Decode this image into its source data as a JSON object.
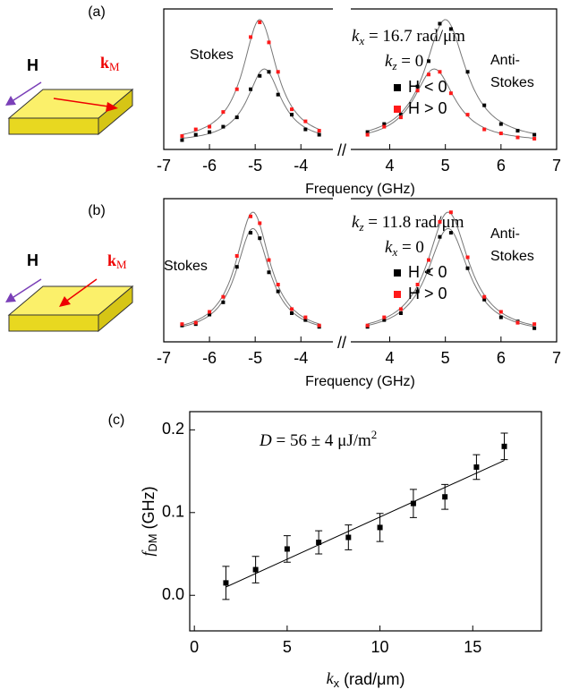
{
  "chart_data": [
    {
      "type": "scatter",
      "panel_label": "(a)",
      "xlabel": "Frequency (GHz)",
      "break_label": "//",
      "xlim": [
        -7,
        7
      ],
      "xbreak": [
        -3.3,
        3.3
      ],
      "ylim": [
        0,
        1.05
      ],
      "xticks": [
        -7,
        -6,
        -5,
        -4,
        4,
        5,
        6,
        7
      ],
      "left_label": "Stokes",
      "right_label": [
        "Anti-",
        "Stokes"
      ],
      "main_label": {
        "symbol": "k",
        "sub": "x",
        "rest": " = 16.7 rad/μm"
      },
      "second_label": {
        "symbol": "k",
        "sub": "z",
        "rest": " = 0"
      },
      "sample_labels": {
        "field": "H",
        "wave": "k",
        "wave_sub": "M"
      },
      "x": [
        -6.6,
        -6.3,
        -6.0,
        -5.7,
        -5.4,
        -5.1,
        -4.9,
        -4.7,
        -4.5,
        -4.2,
        -3.9,
        -3.6,
        3.6,
        3.9,
        4.2,
        4.5,
        4.7,
        4.9,
        5.1,
        5.4,
        5.7,
        6.0,
        6.3,
        6.6
      ],
      "series": [
        {
          "name": "H < 0",
          "color": "#000000",
          "values": [
            0.07,
            0.11,
            0.13,
            0.17,
            0.24,
            0.45,
            0.55,
            0.58,
            0.41,
            0.26,
            0.15,
            0.11,
            0.13,
            0.19,
            0.26,
            0.47,
            0.66,
            0.94,
            0.9,
            0.58,
            0.33,
            0.19,
            0.14,
            0.11
          ],
          "fit": {
            "color": "#777777",
            "baseline": 0.05,
            "peaks": [
              {
                "center": -4.8,
                "amplitude": 0.55,
                "width": 0.45
              },
              {
                "center": 5.0,
                "amplitude": 0.92,
                "width": 0.45
              }
            ]
          }
        },
        {
          "name": "H > 0",
          "color": "#ff1a1a",
          "values": [
            0.1,
            0.15,
            0.17,
            0.28,
            0.45,
            0.84,
            0.95,
            0.8,
            0.58,
            0.3,
            0.21,
            0.14,
            0.11,
            0.17,
            0.24,
            0.44,
            0.56,
            0.58,
            0.42,
            0.26,
            0.15,
            0.12,
            0.09,
            0.08
          ],
          "fit": {
            "color": "#777777",
            "baseline": 0.05,
            "peaks": [
              {
                "center": -4.9,
                "amplitude": 0.92,
                "width": 0.45
              },
              {
                "center": 4.8,
                "amplitude": 0.55,
                "width": 0.45
              }
            ]
          }
        }
      ]
    },
    {
      "type": "scatter",
      "panel_label": "(b)",
      "xlabel": "Frequency (GHz)",
      "break_label": "//",
      "xlim": [
        -7,
        7
      ],
      "xbreak": [
        -3.3,
        3.3
      ],
      "ylim": [
        0,
        1.05
      ],
      "xticks": [
        -7,
        -6,
        -5,
        -4,
        4,
        5,
        6,
        7
      ],
      "left_label": "Stokes",
      "right_label": [
        "Anti-",
        "Stokes"
      ],
      "main_label": {
        "symbol": "k",
        "sub": "z",
        "rest": " = 11.8 rad/μm"
      },
      "second_label": {
        "symbol": "k",
        "sub": "x",
        "rest": " = 0"
      },
      "sample_labels": {
        "field": "H",
        "wave": "k",
        "wave_sub": "M"
      },
      "x": [
        -6.6,
        -6.3,
        -6.0,
        -5.7,
        -5.4,
        -5.1,
        -4.9,
        -4.7,
        -4.5,
        -4.2,
        -3.9,
        -3.6,
        3.6,
        3.9,
        4.2,
        4.5,
        4.7,
        4.9,
        5.1,
        5.4,
        5.7,
        6.0,
        6.3,
        6.6
      ],
      "series": [
        {
          "name": "H < 0",
          "color": "#000000",
          "values": [
            0.12,
            0.13,
            0.2,
            0.29,
            0.55,
            0.8,
            0.76,
            0.51,
            0.37,
            0.21,
            0.16,
            0.11,
            0.11,
            0.16,
            0.21,
            0.37,
            0.52,
            0.77,
            0.8,
            0.54,
            0.31,
            0.18,
            0.15,
            0.1
          ],
          "fit": {
            "color": "#777777",
            "baseline": 0.05,
            "peaks": [
              {
                "center": -5.05,
                "amplitude": 0.78,
                "width": 0.45
              },
              {
                "center": 5.05,
                "amplitude": 0.78,
                "width": 0.45
              }
            ]
          }
        },
        {
          "name": "H > 0",
          "color": "#ff1a1a",
          "values": [
            0.13,
            0.14,
            0.22,
            0.33,
            0.63,
            0.92,
            0.87,
            0.6,
            0.42,
            0.24,
            0.18,
            0.12,
            0.12,
            0.18,
            0.24,
            0.42,
            0.6,
            0.88,
            0.95,
            0.62,
            0.33,
            0.22,
            0.14,
            0.13
          ],
          "fit": {
            "color": "#777777",
            "baseline": 0.05,
            "peaks": [
              {
                "center": -5.05,
                "amplitude": 0.9,
                "width": 0.45
              },
              {
                "center": 5.05,
                "amplitude": 0.9,
                "width": 0.45
              }
            ]
          }
        }
      ]
    },
    {
      "type": "scatter",
      "panel_label": "(c)",
      "xlabel": {
        "symbol": "k",
        "sub": "x",
        "rest": " (rad/μm)"
      },
      "ylabel": {
        "symbol": "f",
        "sub": "DM",
        "rest": " (GHz)"
      },
      "main_label": {
        "symbol": "D",
        "rest": " = 56 ± 4 μJ/m",
        "sup": "2"
      },
      "xlim": [
        -0.25,
        18.7
      ],
      "ylim": [
        -0.043,
        0.222
      ],
      "xticks": [
        0,
        5,
        10,
        15
      ],
      "yticks": [
        {
          "value": 0,
          "label": "0.0"
        },
        {
          "value": 0.1,
          "label": "0.1"
        },
        {
          "value": 0.2,
          "label": "0.2"
        }
      ],
      "x": [
        1.7,
        3.3,
        5.0,
        6.7,
        8.3,
        10.0,
        11.8,
        13.5,
        15.2,
        16.7
      ],
      "series": [
        {
          "color": "#000000",
          "values": [
            0.015,
            0.031,
            0.056,
            0.064,
            0.07,
            0.082,
            0.111,
            0.119,
            0.155,
            0.18
          ],
          "errors": [
            0.02,
            0.016,
            0.016,
            0.014,
            0.015,
            0.017,
            0.017,
            0.015,
            0.015,
            0.016
          ]
        }
      ],
      "fit": {
        "color": "#000000",
        "x": [
          1.7,
          16.7
        ],
        "values": [
          0.01,
          0.163
        ]
      }
    }
  ]
}
